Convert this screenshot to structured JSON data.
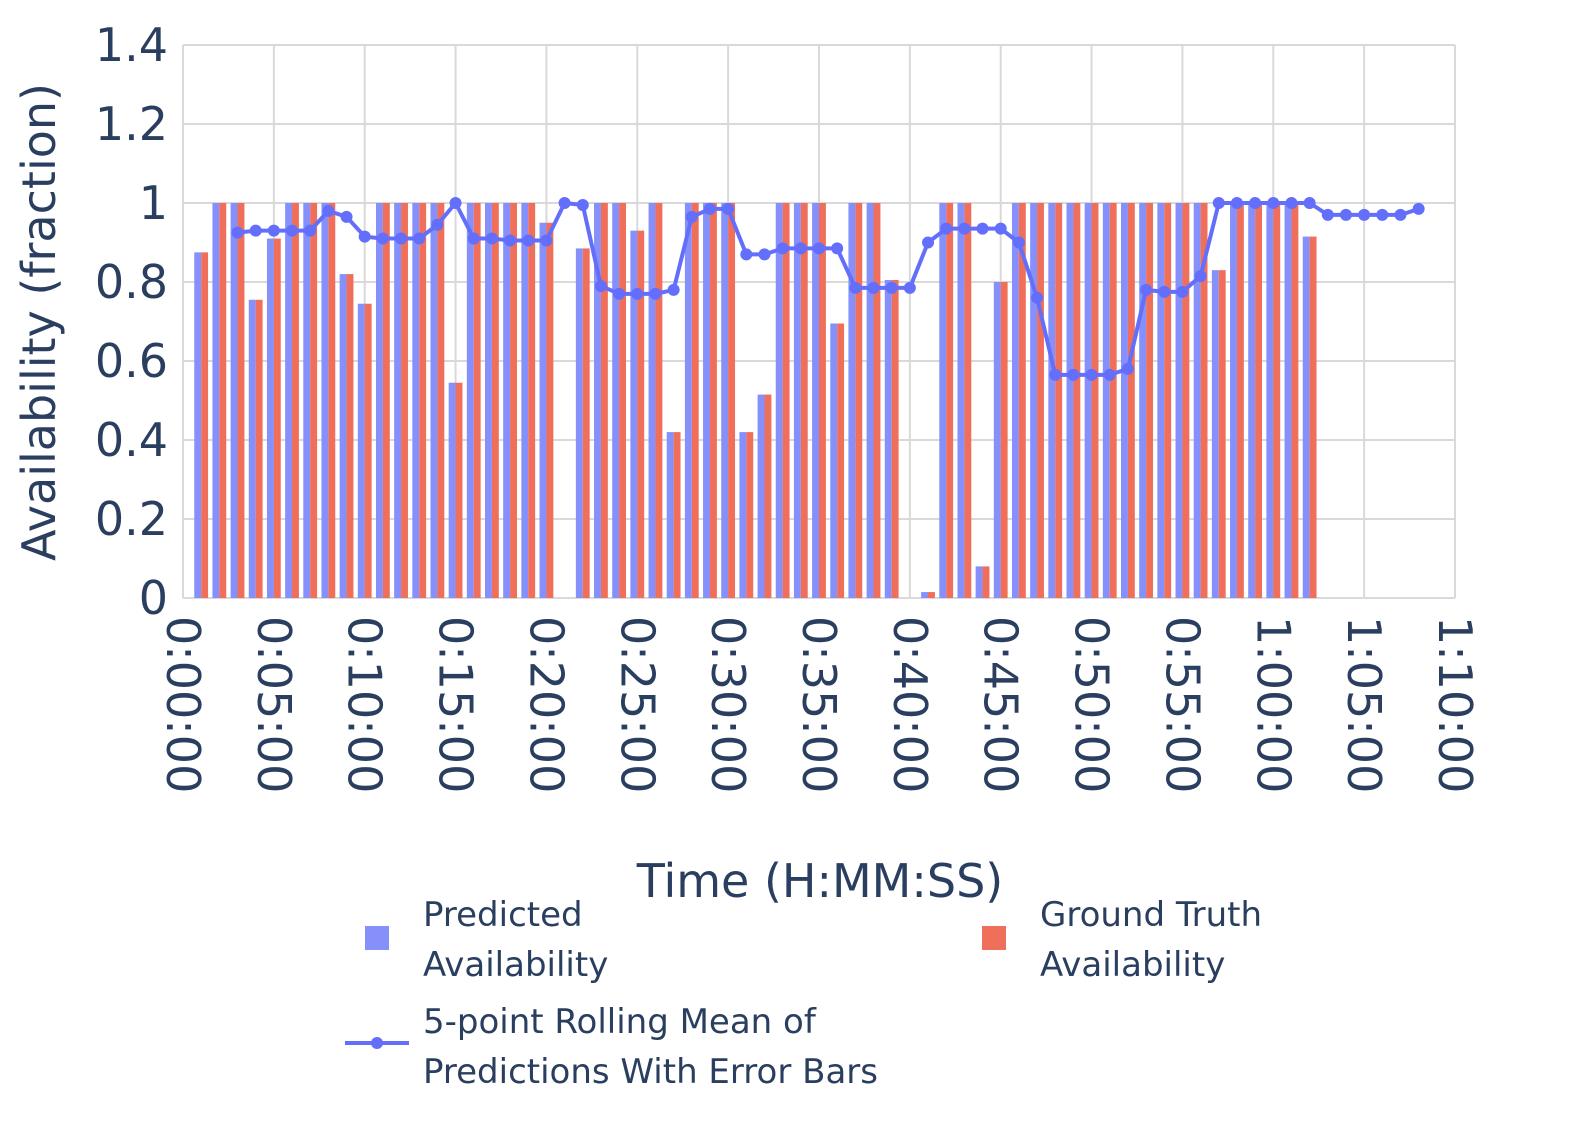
{
  "chart_data": {
    "type": "bar",
    "xlabel": "Time (H:MM:SS)",
    "ylabel": "Availability (fraction)",
    "ylim": [
      0,
      1.4
    ],
    "yticks": [
      0,
      0.2,
      0.4,
      0.6,
      0.8,
      1,
      1.2,
      1.4
    ],
    "ytick_labels": [
      "0",
      "0.2",
      "0.4",
      "0.6",
      "0.8",
      "1",
      "1.2",
      "1.4"
    ],
    "xlim_minutes": [
      0,
      70
    ],
    "xticks_minutes": [
      0,
      5,
      10,
      15,
      20,
      25,
      30,
      35,
      40,
      45,
      50,
      55,
      60,
      65,
      70
    ],
    "xtick_labels": [
      "0:00:00",
      "0:05:00",
      "0:10:00",
      "0:15:00",
      "0:20:00",
      "0:25:00",
      "0:30:00",
      "0:35:00",
      "0:40:00",
      "0:45:00",
      "0:50:00",
      "0:55:00",
      "1:00:00",
      "1:05:00",
      "1:10:00"
    ],
    "grid": true,
    "legend_position": "bottom",
    "x_minutes": [
      1,
      2,
      3,
      4,
      5,
      6,
      7,
      8,
      9,
      10,
      11,
      12,
      13,
      14,
      15,
      16,
      17,
      18,
      19,
      20,
      21,
      22,
      23,
      24,
      25,
      26,
      27,
      28,
      29,
      30,
      31,
      32,
      33,
      34,
      35,
      36,
      37,
      38,
      39,
      40,
      41,
      42,
      43,
      44,
      45,
      46,
      47,
      48,
      49,
      50,
      51,
      52,
      53,
      54,
      55,
      56,
      57,
      58,
      59,
      60,
      61,
      62,
      63,
      64,
      65,
      66,
      67,
      68,
      69
    ],
    "series": [
      {
        "name": "Predicted Availability",
        "kind": "bar",
        "color": "#8590fb",
        "values": [
          0.875,
          1,
          1,
          0.755,
          0.91,
          1,
          1,
          1,
          0.82,
          0.745,
          1,
          1,
          1,
          1,
          0.545,
          1,
          1,
          1,
          1,
          0.95,
          0,
          0.885,
          1,
          1,
          0.93,
          1,
          0.42,
          1,
          1,
          1,
          0.42,
          0.515,
          1,
          1,
          1,
          0.695,
          1,
          1,
          0.805,
          0,
          0.015,
          1,
          1,
          0.08,
          0.8,
          1,
          1,
          1,
          1,
          1,
          1,
          1,
          1,
          1,
          1,
          1,
          0.83,
          1,
          1,
          1,
          1,
          0.915,
          null,
          null,
          null,
          null,
          null,
          null,
          null
        ]
      },
      {
        "name": "Ground Truth Availability",
        "kind": "bar",
        "color": "#ef6f5a",
        "values": [
          0.875,
          1,
          1,
          0.755,
          0.91,
          1,
          1,
          1,
          0.82,
          0.745,
          1,
          1,
          1,
          1,
          0.545,
          1,
          1,
          1,
          1,
          0.95,
          0,
          0.885,
          1,
          1,
          0.93,
          1,
          0.42,
          1,
          1,
          1,
          0.42,
          0.515,
          1,
          1,
          1,
          0.695,
          1,
          1,
          0.805,
          0,
          0.015,
          1,
          1,
          0.08,
          0.8,
          1,
          1,
          1,
          1,
          1,
          1,
          1,
          1,
          1,
          1,
          1,
          0.83,
          1,
          1,
          1,
          1,
          0.915,
          null,
          null,
          null,
          null,
          null,
          null,
          null
        ]
      },
      {
        "name": "5-point Rolling Mean of Predictions With Error Bars",
        "kind": "line",
        "color": "#636efa",
        "x_minutes": [
          3,
          4,
          5,
          6,
          7,
          8,
          9,
          10,
          11,
          12,
          13,
          14,
          15,
          16,
          17,
          18,
          19,
          20,
          21,
          22,
          23,
          24,
          25,
          26,
          27,
          28,
          29,
          30,
          31,
          32,
          33,
          34,
          35,
          36,
          37,
          38,
          39,
          40,
          41,
          42,
          43,
          44,
          45,
          46,
          47,
          48,
          49,
          50,
          51,
          52,
          53,
          54,
          55,
          56,
          57,
          58,
          59,
          60,
          61,
          62,
          63,
          64,
          65,
          66,
          67,
          68
        ],
        "values": [
          0.925,
          0.93,
          0.93,
          0.93,
          0.93,
          0.98,
          0.965,
          0.915,
          0.91,
          0.91,
          0.91,
          0.945,
          1,
          0.91,
          0.91,
          0.905,
          0.905,
          0.905,
          1,
          0.995,
          0.79,
          0.77,
          0.77,
          0.77,
          0.78,
          0.965,
          0.985,
          0.985,
          0.87,
          0.87,
          0.885,
          0.885,
          0.885,
          0.885,
          0.785,
          0.785,
          0.785,
          0.785,
          0.9,
          0.935,
          0.935,
          0.935,
          0.935,
          0.9,
          0.76,
          0.565,
          0.565,
          0.565,
          0.565,
          0.58,
          0.78,
          0.775,
          0.775,
          0.815,
          1,
          1,
          1,
          1,
          1,
          1,
          0.97,
          0.97,
          0.97,
          0.97,
          0.97,
          0.985
        ]
      }
    ]
  }
}
